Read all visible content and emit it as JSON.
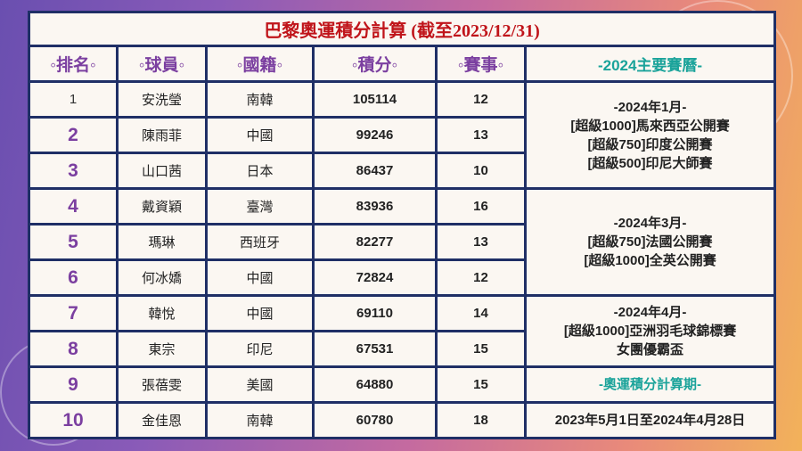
{
  "title": "巴黎奧運積分計算 (截至2023/12/31)",
  "headers": [
    "◦排名◦",
    "◦球員◦",
    "◦國籍◦",
    "◦積分◦",
    "◦賽事◦",
    "-2024主要賽曆-"
  ],
  "rows": [
    {
      "rank": "1",
      "player": "安洗瑩",
      "country": "南韓",
      "points": "105114",
      "events": "12"
    },
    {
      "rank": "2",
      "player": "陳雨菲",
      "country": "中國",
      "points": "99246",
      "events": "13"
    },
    {
      "rank": "3",
      "player": "山口茜",
      "country": "日本",
      "points": "86437",
      "events": "10"
    },
    {
      "rank": "4",
      "player": "戴資穎",
      "country": "臺灣",
      "points": "83936",
      "events": "16"
    },
    {
      "rank": "5",
      "player": "瑪琳",
      "country": "西班牙",
      "points": "82277",
      "events": "13"
    },
    {
      "rank": "6",
      "player": "何冰嬌",
      "country": "中國",
      "points": "72824",
      "events": "12"
    },
    {
      "rank": "7",
      "player": "韓悅",
      "country": "中國",
      "points": "69110",
      "events": "14"
    },
    {
      "rank": "8",
      "player": "東宗",
      "country": "印尼",
      "points": "67531",
      "events": "15"
    },
    {
      "rank": "9",
      "player": "張蓓雯",
      "country": "美國",
      "points": "64880",
      "events": "15"
    },
    {
      "rank": "10",
      "player": "金佳恩",
      "country": "南韓",
      "points": "60780",
      "events": "18"
    }
  ],
  "schedule": [
    {
      "lines": [
        "-2024年1月-",
        "[超級1000]馬來西亞公開賽",
        "[超級750]印度公開賽",
        "[超級500]印尼大師賽"
      ]
    },
    {
      "lines": [
        "-2024年3月-",
        "[超級750]法國公開賽",
        "[超級1000]全英公開賽"
      ]
    },
    {
      "lines": [
        "-2024年4月-",
        "[超級1000]亞洲羽毛球錦標賽",
        "女團優霸盃"
      ]
    },
    {
      "lines": [
        "-奧運積分計算期-"
      ]
    },
    {
      "lines": [
        "2023年5月1日至2024年4月28日"
      ]
    }
  ],
  "colors": {
    "border": "#1f2f66",
    "header": "#7b3fa0",
    "accent": "#1aa39a",
    "title": "#c0141a"
  }
}
